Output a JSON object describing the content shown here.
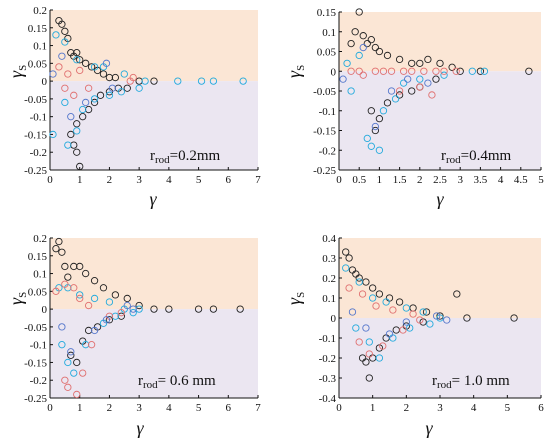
{
  "colors": {
    "upper_band": "#fbe6d5",
    "lower_band": "#ebe6f1",
    "series_black": "#222222",
    "series_cyan": "#22aadd",
    "series_red": "#e07070",
    "series_blue": "#5577cc"
  },
  "chart_data": [
    {
      "type": "scatter",
      "panel": "a",
      "xlabel": "γ",
      "ylabel": "γ",
      "ylabel_sub": "S",
      "annotation": {
        "main": "r",
        "sub": "rod",
        "rest": "=0.2mm"
      },
      "xlim": [
        0,
        7
      ],
      "ylim": [
        -0.25,
        0.2
      ],
      "xticks": [
        "0",
        "1",
        "2",
        "3",
        "4",
        "5",
        "6",
        "7"
      ],
      "yticks": [
        "-0.25",
        "-0.2",
        "-0.15",
        "-0.1",
        "-0.05",
        "0",
        "0.05",
        "0.1",
        "0.15",
        "0.2"
      ],
      "series": [
        {
          "color": "black",
          "points": [
            [
              0.3,
              0.17
            ],
            [
              0.4,
              0.16
            ],
            [
              0.5,
              0.14
            ],
            [
              0.6,
              0.12
            ],
            [
              0.7,
              0.08
            ],
            [
              0.8,
              0.07
            ],
            [
              0.9,
              0.08
            ],
            [
              1.0,
              0.06
            ],
            [
              1.2,
              0.05
            ],
            [
              1.4,
              0.04
            ],
            [
              1.6,
              0.03
            ],
            [
              1.8,
              0.02
            ],
            [
              2.0,
              0.01
            ],
            [
              2.2,
              0.01
            ],
            [
              0.7,
              -0.15
            ],
            [
              0.8,
              -0.18
            ],
            [
              0.9,
              -0.2
            ],
            [
              1.0,
              -0.24
            ],
            [
              0.9,
              -0.12
            ],
            [
              1.1,
              -0.1
            ],
            [
              1.3,
              -0.08
            ],
            [
              1.5,
              -0.06
            ],
            [
              1.7,
              -0.04
            ],
            [
              2.0,
              -0.03
            ],
            [
              2.3,
              -0.02
            ],
            [
              2.6,
              -0.02
            ],
            [
              3.0,
              0
            ],
            [
              3.5,
              0
            ]
          ]
        },
        {
          "color": "cyan",
          "points": [
            [
              0.2,
              0.13
            ],
            [
              0.5,
              0.11
            ],
            [
              0.9,
              0.06
            ],
            [
              1.5,
              0.04
            ],
            [
              1.8,
              0.04
            ],
            [
              2.5,
              0.02
            ],
            [
              3.2,
              0
            ],
            [
              4.3,
              0
            ],
            [
              5.1,
              0
            ],
            [
              5.5,
              0
            ],
            [
              6.5,
              0
            ],
            [
              0.5,
              -0.06
            ],
            [
              0.6,
              -0.18
            ],
            [
              0.9,
              -0.14
            ],
            [
              1.1,
              -0.08
            ],
            [
              1.5,
              -0.05
            ],
            [
              2.0,
              -0.04
            ],
            [
              2.4,
              -0.03
            ],
            [
              3.0,
              -0.02
            ],
            [
              0.1,
              -0.15
            ]
          ]
        },
        {
          "color": "red",
          "points": [
            [
              0.3,
              0.04
            ],
            [
              0.6,
              0.02
            ],
            [
              1.0,
              0.03
            ],
            [
              0.5,
              -0.02
            ],
            [
              0.8,
              -0.04
            ],
            [
              1.3,
              -0.02
            ],
            [
              2.7,
              0
            ],
            [
              2.8,
              0.01
            ]
          ]
        },
        {
          "color": "blue",
          "points": [
            [
              0.1,
              0.02
            ],
            [
              0.4,
              0.07
            ],
            [
              0.7,
              -0.1
            ],
            [
              1.2,
              -0.06
            ],
            [
              1.9,
              0.05
            ],
            [
              2.1,
              -0.02
            ]
          ]
        }
      ]
    },
    {
      "type": "scatter",
      "panel": "b",
      "xlabel": "γ",
      "ylabel": "γ",
      "ylabel_sub": "S",
      "annotation": {
        "main": "r",
        "sub": "rod",
        "rest": "=0.4mm"
      },
      "xlim": [
        0,
        5
      ],
      "ylim": [
        -0.25,
        0.15
      ],
      "xticks": [
        "0",
        "0.5",
        "1",
        "1.5",
        "2",
        "2.5",
        "3",
        "3.5",
        "4",
        "4.5",
        "5"
      ],
      "yticks": [
        "-0.25",
        "-0.2",
        "-0.15",
        "-0.1",
        "-0.05",
        "0",
        "0.05",
        "0.1",
        "0.15"
      ],
      "series": [
        {
          "color": "black",
          "points": [
            [
              0.3,
              0.07
            ],
            [
              0.4,
              0.1
            ],
            [
              0.5,
              0.15
            ],
            [
              0.6,
              0.09
            ],
            [
              0.7,
              0.07
            ],
            [
              0.8,
              0.08
            ],
            [
              0.9,
              0.06
            ],
            [
              1.0,
              0.05
            ],
            [
              1.2,
              0.04
            ],
            [
              1.5,
              0.03
            ],
            [
              1.8,
              0.02
            ],
            [
              2.0,
              0.02
            ],
            [
              2.2,
              0.03
            ],
            [
              2.5,
              0.02
            ],
            [
              2.8,
              0.01
            ],
            [
              0.8,
              -0.1
            ],
            [
              0.9,
              -0.15
            ],
            [
              1.0,
              -0.12
            ],
            [
              1.2,
              -0.08
            ],
            [
              1.5,
              -0.06
            ],
            [
              1.8,
              -0.05
            ],
            [
              2.0,
              -0.04
            ],
            [
              2.4,
              -0.02
            ],
            [
              3.0,
              0
            ],
            [
              3.5,
              0
            ],
            [
              4.7,
              0
            ]
          ]
        },
        {
          "color": "cyan",
          "points": [
            [
              0.2,
              0.02
            ],
            [
              0.5,
              0.04
            ],
            [
              0.7,
              -0.17
            ],
            [
              0.8,
              -0.19
            ],
            [
              1.0,
              -0.2
            ],
            [
              1.1,
              -0.1
            ],
            [
              1.4,
              -0.07
            ],
            [
              1.6,
              -0.03
            ],
            [
              2.0,
              -0.02
            ],
            [
              2.6,
              -0.01
            ],
            [
              3.3,
              0
            ],
            [
              3.6,
              0
            ],
            [
              0.3,
              -0.05
            ]
          ]
        },
        {
          "color": "red",
          "points": [
            [
              0.3,
              0
            ],
            [
              0.5,
              0
            ],
            [
              0.9,
              0
            ],
            [
              1.1,
              0
            ],
            [
              1.3,
              0
            ],
            [
              1.6,
              0
            ],
            [
              1.8,
              0
            ],
            [
              2.1,
              0
            ],
            [
              2.4,
              0
            ],
            [
              2.6,
              0
            ],
            [
              2.9,
              0
            ],
            [
              0.6,
              -0.01
            ],
            [
              1.5,
              -0.05
            ],
            [
              2.0,
              -0.04
            ],
            [
              2.3,
              -0.06
            ]
          ]
        },
        {
          "color": "blue",
          "points": [
            [
              0.1,
              -0.02
            ],
            [
              0.6,
              0.06
            ],
            [
              0.9,
              -0.14
            ],
            [
              1.3,
              -0.05
            ],
            [
              1.7,
              -0.02
            ],
            [
              2.2,
              -0.03
            ]
          ]
        }
      ]
    },
    {
      "type": "scatter",
      "panel": "c",
      "xlabel": "γ",
      "ylabel": "γ",
      "ylabel_sub": "S",
      "annotation": {
        "main": "r",
        "sub": "rod",
        "rest": "= 0.6 mm"
      },
      "xlim": [
        0,
        7
      ],
      "ylim": [
        -0.25,
        0.2
      ],
      "xticks": [
        "0",
        "1",
        "2",
        "3",
        "4",
        "5",
        "6",
        "7"
      ],
      "yticks": [
        "-0.25",
        "-0.2",
        "-0.15",
        "-0.1",
        "-0.05",
        "0",
        "0.05",
        "0.1",
        "0.15",
        "0.2"
      ],
      "series": [
        {
          "color": "black",
          "points": [
            [
              0.2,
              0.17
            ],
            [
              0.3,
              0.19
            ],
            [
              0.4,
              0.16
            ],
            [
              0.5,
              0.12
            ],
            [
              0.6,
              0.09
            ],
            [
              0.8,
              0.12
            ],
            [
              1.0,
              0.12
            ],
            [
              1.2,
              0.1
            ],
            [
              1.5,
              0.08
            ],
            [
              1.8,
              0.06
            ],
            [
              2.2,
              0.04
            ],
            [
              2.6,
              0.03
            ],
            [
              3.0,
              0.01
            ],
            [
              3.5,
              0
            ],
            [
              4.0,
              0
            ],
            [
              0.7,
              -0.13
            ],
            [
              0.9,
              -0.15
            ],
            [
              1.1,
              -0.09
            ],
            [
              1.3,
              -0.06
            ],
            [
              1.6,
              -0.05
            ],
            [
              2.0,
              -0.03
            ],
            [
              2.4,
              -0.02
            ],
            [
              5.0,
              0
            ],
            [
              5.5,
              0
            ],
            [
              6.4,
              0
            ]
          ]
        },
        {
          "color": "cyan",
          "points": [
            [
              0.3,
              0.06
            ],
            [
              0.6,
              0.06
            ],
            [
              1.0,
              0.04
            ],
            [
              1.5,
              0.03
            ],
            [
              2.0,
              0.02
            ],
            [
              2.5,
              0
            ],
            [
              3.0,
              0
            ],
            [
              0.4,
              -0.1
            ],
            [
              0.6,
              -0.15
            ],
            [
              0.8,
              -0.18
            ],
            [
              1.2,
              -0.1
            ],
            [
              1.8,
              -0.04
            ],
            [
              2.2,
              -0.02
            ],
            [
              2.8,
              -0.01
            ]
          ]
        },
        {
          "color": "red",
          "points": [
            [
              0.2,
              0.05
            ],
            [
              0.5,
              0.07
            ],
            [
              0.8,
              0.06
            ],
            [
              1.0,
              0.03
            ],
            [
              1.3,
              0.01
            ],
            [
              0.5,
              -0.2
            ],
            [
              0.6,
              -0.22
            ],
            [
              0.9,
              -0.24
            ],
            [
              1.1,
              -0.18
            ],
            [
              1.4,
              -0.1
            ],
            [
              2.0,
              -0.02
            ],
            [
              2.4,
              -0.01
            ]
          ]
        },
        {
          "color": "blue",
          "points": [
            [
              0.4,
              -0.05
            ],
            [
              0.7,
              -0.12
            ],
            [
              1.5,
              -0.06
            ],
            [
              1.9,
              -0.03
            ],
            [
              2.6,
              0.01
            ],
            [
              2.8,
              0
            ]
          ]
        }
      ]
    },
    {
      "type": "scatter",
      "panel": "d",
      "xlabel": "γ",
      "ylabel": "γ",
      "ylabel_sub": "S",
      "annotation": {
        "main": "r",
        "sub": "rod",
        "rest": "= 1.0 mm"
      },
      "xlim": [
        0,
        6
      ],
      "ylim": [
        -0.4,
        0.4
      ],
      "xticks": [
        "0",
        "1",
        "2",
        "3",
        "4",
        "5",
        "6"
      ],
      "yticks": [
        "-0.4",
        "-0.3",
        "-0.2",
        "-0.1",
        "0",
        "0.1",
        "0.2",
        "0.3",
        "0.4"
      ],
      "series": [
        {
          "color": "black",
          "points": [
            [
              0.2,
              0.33
            ],
            [
              0.3,
              0.3
            ],
            [
              0.4,
              0.24
            ],
            [
              0.5,
              0.22
            ],
            [
              0.6,
              0.2
            ],
            [
              0.8,
              0.18
            ],
            [
              1.0,
              0.15
            ],
            [
              1.2,
              0.12
            ],
            [
              1.5,
              0.1
            ],
            [
              1.8,
              0.08
            ],
            [
              2.2,
              0.05
            ],
            [
              2.6,
              0.03
            ],
            [
              3.0,
              0.01
            ],
            [
              3.5,
              0.12
            ],
            [
              0.7,
              -0.2
            ],
            [
              0.8,
              -0.22
            ],
            [
              0.9,
              -0.3
            ],
            [
              1.0,
              -0.2
            ],
            [
              1.2,
              -0.15
            ],
            [
              1.4,
              -0.1
            ],
            [
              1.7,
              -0.06
            ],
            [
              2.0,
              -0.04
            ],
            [
              2.5,
              -0.02
            ],
            [
              3.8,
              0
            ],
            [
              5.2,
              0
            ]
          ]
        },
        {
          "color": "cyan",
          "points": [
            [
              0.2,
              0.25
            ],
            [
              0.6,
              0.18
            ],
            [
              1.0,
              0.1
            ],
            [
              1.4,
              0.08
            ],
            [
              2.0,
              0.05
            ],
            [
              2.5,
              0.03
            ],
            [
              3.0,
              0
            ],
            [
              0.5,
              -0.05
            ],
            [
              0.9,
              -0.12
            ],
            [
              1.2,
              -0.2
            ],
            [
              1.6,
              -0.1
            ],
            [
              2.1,
              -0.05
            ],
            [
              2.7,
              -0.03
            ]
          ]
        },
        {
          "color": "red",
          "points": [
            [
              0.3,
              0.15
            ],
            [
              0.7,
              0.12
            ],
            [
              1.1,
              0.06
            ],
            [
              1.6,
              0.04
            ],
            [
              2.2,
              0.02
            ],
            [
              0.6,
              -0.12
            ],
            [
              0.9,
              -0.18
            ],
            [
              1.3,
              -0.14
            ],
            [
              1.9,
              -0.06
            ],
            [
              2.4,
              -0.01
            ]
          ]
        },
        {
          "color": "blue",
          "points": [
            [
              0.4,
              0.03
            ],
            [
              0.8,
              -0.05
            ],
            [
              1.5,
              -0.08
            ],
            [
              2.0,
              -0.02
            ],
            [
              2.9,
              0.01
            ],
            [
              3.2,
              -0.01
            ]
          ]
        }
      ]
    }
  ]
}
